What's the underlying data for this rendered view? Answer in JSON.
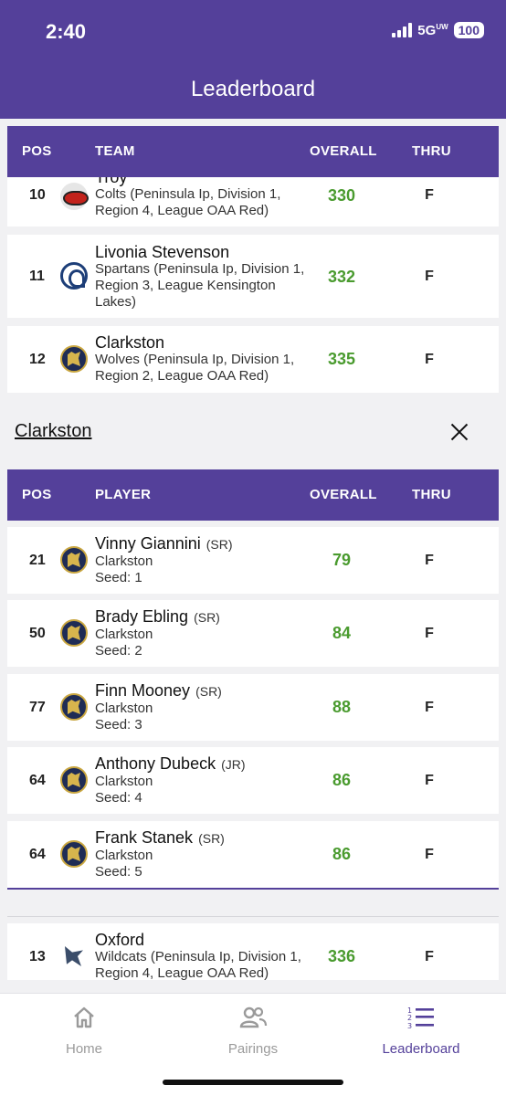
{
  "status": {
    "time": "2:40",
    "network": "5G",
    "network_sup": "UW",
    "battery": "100"
  },
  "header": {
    "title": "Leaderboard"
  },
  "team_table": {
    "columns": {
      "pos": "POS",
      "team": "TEAM",
      "overall": "OVERALL",
      "thru": "THRU"
    },
    "rows": [
      {
        "pos": "10",
        "name": "Troy",
        "desc": "Colts (Peninsula Ip, Division 1, Region 4, League OAA Red)",
        "overall": "330",
        "thru": "F",
        "logo": "troy-colts-logo"
      },
      {
        "pos": "11",
        "name": "Livonia Stevenson",
        "desc": "Spartans (Peninsula Ip, Division 1, Region 3, League Kensington Lakes)",
        "overall": "332",
        "thru": "F",
        "logo": "spartans-logo"
      },
      {
        "pos": "12",
        "name": "Clarkston",
        "desc": "Wolves (Peninsula Ip, Division 1, Region 2, League OAA Red)",
        "overall": "335",
        "thru": "F",
        "logo": "wolves-logo"
      }
    ],
    "after_rows": [
      {
        "pos": "13",
        "name": "Oxford",
        "desc": "Wildcats (Peninsula Ip, Division 1, Region 4, League OAA Red)",
        "overall": "336",
        "thru": "F",
        "logo": "wildcats-logo"
      }
    ]
  },
  "selected_team": {
    "name": "Clarkston",
    "columns": {
      "pos": "POS",
      "player": "PLAYER",
      "overall": "OVERALL",
      "thru": "THRU"
    },
    "players": [
      {
        "pos": "21",
        "name": "Vinny Giannini",
        "year": "(SR)",
        "school": "Clarkston",
        "seed": "Seed: 1",
        "overall": "79",
        "thru": "F"
      },
      {
        "pos": "50",
        "name": "Brady Ebling",
        "year": "(SR)",
        "school": "Clarkston",
        "seed": "Seed: 2",
        "overall": "84",
        "thru": "F"
      },
      {
        "pos": "77",
        "name": "Finn Mooney",
        "year": "(SR)",
        "school": "Clarkston",
        "seed": "Seed: 3",
        "overall": "88",
        "thru": "F"
      },
      {
        "pos": "64",
        "name": "Anthony Dubeck",
        "year": "(JR)",
        "school": "Clarkston",
        "seed": "Seed: 4",
        "overall": "86",
        "thru": "F"
      },
      {
        "pos": "64",
        "name": "Frank Stanek",
        "year": "(SR)",
        "school": "Clarkston",
        "seed": "Seed: 5",
        "overall": "86",
        "thru": "F"
      }
    ]
  },
  "tabs": [
    {
      "label": "Home",
      "icon": "home-icon",
      "active": false
    },
    {
      "label": "Pairings",
      "icon": "people-icon",
      "active": false
    },
    {
      "label": "Leaderboard",
      "icon": "ranked-list-icon",
      "active": true
    }
  ],
  "colors": {
    "brand": "#54409a",
    "score": "#4a9b2f"
  }
}
